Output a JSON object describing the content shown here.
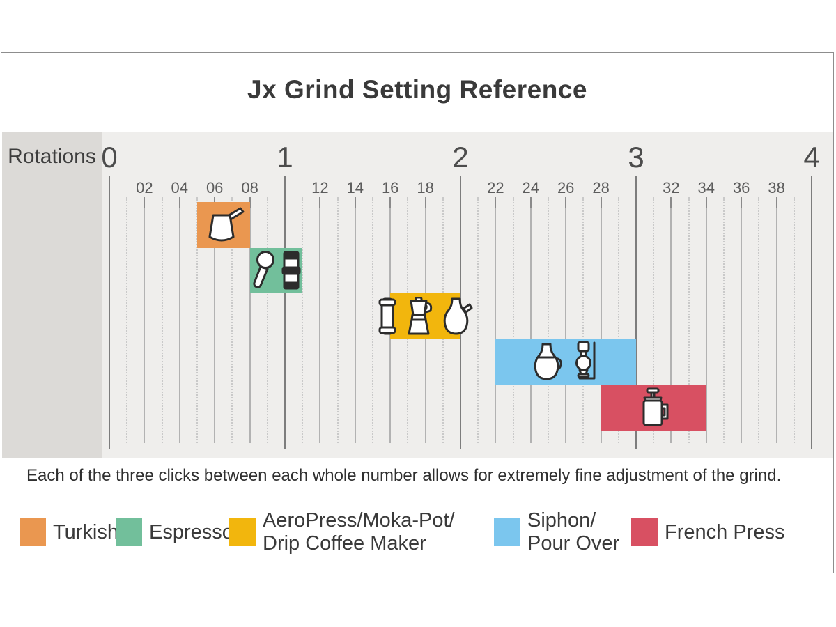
{
  "title": "Jx Grind Setting Reference",
  "note": "Each of the three clicks between each whole number allows for extremely fine adjustment of the grind.",
  "colors": {
    "chart_background": "#efeeec",
    "axis_panel_background": "#dcdad7",
    "frame_border": "#8d8d8d",
    "text": "#3a3a3a",
    "turkish": "#ea9750",
    "espresso": "#72bf9b",
    "aeropress_moka_drip": "#f2b60d",
    "siphon_pour_over": "#7bc6ee",
    "french_press": "#d85062"
  },
  "chart_data": {
    "type": "bar",
    "subtype": "horizontal-range-bands",
    "title": "Jx Grind Setting Reference",
    "xlabel": "Rotations",
    "xlim": [
      0,
      4
    ],
    "x_major_ticks": [
      0,
      1,
      2,
      3,
      4
    ],
    "x_major_tick_labels": [
      "0",
      "1",
      "2",
      "3",
      "4"
    ],
    "x_minor_tick_step": 0.1,
    "x_minor_tick_labels": [
      "02",
      "04",
      "06",
      "08",
      "12",
      "14",
      "16",
      "18",
      "22",
      "24",
      "26",
      "28",
      "32",
      "34",
      "36",
      "38"
    ],
    "grid": true,
    "note": "Each of the three clicks between each whole number allows for extremely fine adjustment of the grind.",
    "bands": [
      {
        "name": "Turkish",
        "start_rotations": 0.5,
        "end_rotations": 0.8,
        "row": 0,
        "color": "#ea9750",
        "icons": [
          "cezve"
        ]
      },
      {
        "name": "Espresso",
        "start_rotations": 0.8,
        "end_rotations": 1.1,
        "row": 1,
        "color": "#72bf9b",
        "icons": [
          "portafilter",
          "espresso-maker"
        ]
      },
      {
        "name": "AeroPress/Moka-Pot/Drip Coffee Maker",
        "start_rotations": 1.6,
        "end_rotations": 2.0,
        "row": 2,
        "color": "#f2b60d",
        "icons": [
          "aeropress",
          "moka-pot",
          "drip-carafe"
        ]
      },
      {
        "name": "Siphon/Pour Over",
        "start_rotations": 2.2,
        "end_rotations": 3.0,
        "row": 3,
        "color": "#7bc6ee",
        "icons": [
          "pour-over-carafe",
          "siphon"
        ]
      },
      {
        "name": "French Press",
        "start_rotations": 2.8,
        "end_rotations": 3.4,
        "row": 4,
        "color": "#d85062",
        "icons": [
          "french-press"
        ]
      }
    ]
  },
  "legend": [
    {
      "label_lines": [
        "Turkish"
      ],
      "color": "#ea9750"
    },
    {
      "label_lines": [
        "Espresso"
      ],
      "color": "#72bf9b"
    },
    {
      "label_lines": [
        "AeroPress/Moka-Pot/",
        "Drip Coffee Maker"
      ],
      "color": "#f2b60d"
    },
    {
      "label_lines": [
        "Siphon/",
        "Pour Over"
      ],
      "color": "#7bc6ee"
    },
    {
      "label_lines": [
        "French Press"
      ],
      "color": "#d85062"
    }
  ]
}
